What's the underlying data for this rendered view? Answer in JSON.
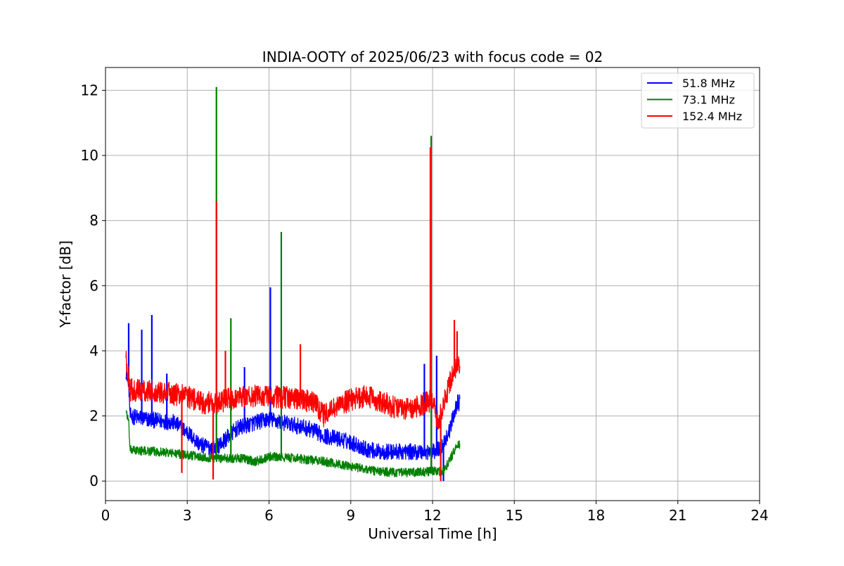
{
  "chart_data": {
    "type": "line",
    "title": "INDIA-OOTY of 2025/06/23 with focus code = 02",
    "xlabel": "Universal Time [h]",
    "ylabel": "Y-factor [dB]",
    "xlim": [
      0,
      24
    ],
    "ylim": [
      -0.6,
      12.7
    ],
    "xticks": [
      0,
      3,
      6,
      9,
      12,
      15,
      18,
      21,
      24
    ],
    "xtick_labels": [
      "0",
      "3",
      "6",
      "9",
      "12",
      "15",
      "18",
      "21",
      "24"
    ],
    "yticks": [
      0,
      2,
      4,
      6,
      8,
      10,
      12
    ],
    "ytick_labels": [
      "0",
      "2",
      "4",
      "6",
      "8",
      "10",
      "12"
    ],
    "grid": true,
    "legend_position": "top-right",
    "series": [
      {
        "name": " 51.8 MHz",
        "color": "#0000ff",
        "data_range": [
          0.75,
          13.0
        ],
        "baseline": [
          [
            0.75,
            3.4
          ],
          [
            0.85,
            3.1
          ],
          [
            0.9,
            2.0
          ],
          [
            1.5,
            1.9
          ],
          [
            2.5,
            1.8
          ],
          [
            3.0,
            1.5
          ],
          [
            3.5,
            1.1
          ],
          [
            4.0,
            1.0
          ],
          [
            4.3,
            1.2
          ],
          [
            4.8,
            1.6
          ],
          [
            5.5,
            1.8
          ],
          [
            6.0,
            1.9
          ],
          [
            6.5,
            1.8
          ],
          [
            7.0,
            1.7
          ],
          [
            7.5,
            1.6
          ],
          [
            8.0,
            1.4
          ],
          [
            8.5,
            1.3
          ],
          [
            9.0,
            1.2
          ],
          [
            9.5,
            1.0
          ],
          [
            10.0,
            0.9
          ],
          [
            10.5,
            0.9
          ],
          [
            11.0,
            0.9
          ],
          [
            11.5,
            0.9
          ],
          [
            12.0,
            0.9
          ],
          [
            12.3,
            1.0
          ],
          [
            12.6,
            1.5
          ],
          [
            12.9,
            2.4
          ]
        ],
        "noise": 0.25,
        "spikes": [
          [
            0.85,
            4.85
          ],
          [
            1.33,
            4.65
          ],
          [
            1.7,
            5.1
          ],
          [
            2.25,
            3.3
          ],
          [
            5.1,
            3.5
          ],
          [
            6.05,
            5.95
          ],
          [
            11.7,
            3.6
          ],
          [
            12.15,
            3.85
          ],
          [
            12.4,
            0.0
          ]
        ]
      },
      {
        "name": " 73.1 MHz",
        "color": "#008000",
        "data_range": [
          0.75,
          13.0
        ],
        "baseline": [
          [
            0.75,
            2.2
          ],
          [
            0.85,
            1.8
          ],
          [
            0.9,
            0.95
          ],
          [
            2.0,
            0.9
          ],
          [
            3.0,
            0.8
          ],
          [
            4.0,
            0.7
          ],
          [
            5.0,
            0.7
          ],
          [
            5.5,
            0.6
          ],
          [
            6.0,
            0.75
          ],
          [
            7.0,
            0.7
          ],
          [
            8.0,
            0.6
          ],
          [
            9.0,
            0.45
          ],
          [
            10.0,
            0.3
          ],
          [
            11.0,
            0.25
          ],
          [
            12.0,
            0.3
          ],
          [
            12.4,
            0.3
          ],
          [
            12.6,
            0.6
          ],
          [
            12.9,
            1.1
          ]
        ],
        "noise": 0.14,
        "spikes": [
          [
            4.07,
            12.1
          ],
          [
            4.6,
            5.0
          ],
          [
            6.45,
            7.65
          ],
          [
            11.95,
            10.6
          ]
        ]
      },
      {
        "name": "152.4 MHz",
        "color": "#ff0000",
        "data_range": [
          0.75,
          13.0
        ],
        "baseline": [
          [
            0.75,
            3.7
          ],
          [
            0.85,
            3.2
          ],
          [
            0.9,
            2.8
          ],
          [
            2.0,
            2.75
          ],
          [
            3.0,
            2.6
          ],
          [
            3.5,
            2.4
          ],
          [
            4.0,
            2.4
          ],
          [
            5.0,
            2.6
          ],
          [
            6.0,
            2.6
          ],
          [
            7.0,
            2.55
          ],
          [
            7.7,
            2.4
          ],
          [
            8.0,
            2.0
          ],
          [
            8.5,
            2.3
          ],
          [
            9.0,
            2.5
          ],
          [
            9.5,
            2.6
          ],
          [
            10.0,
            2.5
          ],
          [
            10.5,
            2.3
          ],
          [
            11.0,
            2.2
          ],
          [
            11.5,
            2.3
          ],
          [
            12.0,
            2.5
          ],
          [
            12.2,
            1.8
          ],
          [
            12.5,
            2.6
          ],
          [
            12.8,
            3.5
          ]
        ],
        "noise": 0.35,
        "spikes": [
          [
            2.8,
            0.25
          ],
          [
            3.95,
            0.05
          ],
          [
            4.07,
            8.6
          ],
          [
            4.4,
            4.0
          ],
          [
            7.15,
            4.2
          ],
          [
            11.92,
            10.25
          ],
          [
            12.3,
            0.0
          ],
          [
            12.8,
            4.95
          ],
          [
            12.9,
            4.6
          ]
        ]
      }
    ]
  }
}
